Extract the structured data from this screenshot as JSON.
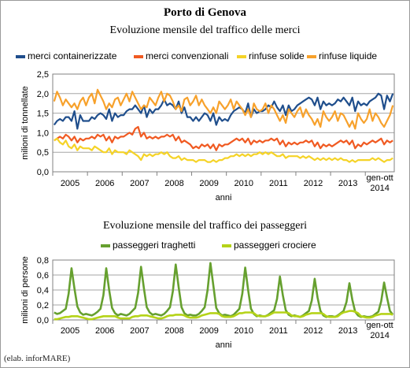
{
  "header": {
    "title": "Porto di Genova",
    "credit": "(elab. inforMARE)"
  },
  "colors": {
    "container": "#1f4e8c",
    "conventional": "#f05a22",
    "dry_bulk": "#f5d327",
    "liquid_bulk": "#f7a12b",
    "ferries": "#66a02f",
    "cruises": "#b5d318",
    "grid": "#a6a6a6"
  },
  "chart_data": [
    {
      "type": "line",
      "title": "Evoluzione mensile del traffico delle merci",
      "xlabel": "anni",
      "ylabel": "milioni di tonnellate",
      "ylim": [
        0,
        2.5
      ],
      "yticks": [
        "0,0",
        "0,5",
        "1,0",
        "1,5",
        "2,0",
        "2,5"
      ],
      "xticks": [
        "2005",
        "2006",
        "2007",
        "2008",
        "2009",
        "2010",
        "2011",
        "2012",
        "2013"
      ],
      "xtick_last": [
        "gen-ott",
        "2014"
      ],
      "grid": true,
      "legend": "top",
      "x": {
        "start": "2005-01",
        "end": "2014-10",
        "step": "month"
      },
      "series": [
        {
          "name": "merci containerizzate",
          "values": [
            1.2,
            1.3,
            1.35,
            1.3,
            1.4,
            1.4,
            1.3,
            1.55,
            1.1,
            1.45,
            1.3,
            1.3,
            1.3,
            1.4,
            1.35,
            1.45,
            1.5,
            1.45,
            1.35,
            1.6,
            1.3,
            1.5,
            1.4,
            1.45,
            1.45,
            1.55,
            1.6,
            1.6,
            1.7,
            1.6,
            1.5,
            1.7,
            1.4,
            1.6,
            1.5,
            1.6,
            1.6,
            1.7,
            1.85,
            1.7,
            1.75,
            1.7,
            1.6,
            1.8,
            1.5,
            1.65,
            1.4,
            1.4,
            1.3,
            1.4,
            1.3,
            1.4,
            1.5,
            1.45,
            1.3,
            1.5,
            1.2,
            1.4,
            1.3,
            1.35,
            1.3,
            1.45,
            1.55,
            1.6,
            1.65,
            1.6,
            1.5,
            1.75,
            1.4,
            1.6,
            1.5,
            1.55,
            1.55,
            1.6,
            1.7,
            1.65,
            1.8,
            1.65,
            1.55,
            1.7,
            1.45,
            1.7,
            1.55,
            1.6,
            1.7,
            1.75,
            1.8,
            1.85,
            1.9,
            1.85,
            1.7,
            1.9,
            1.6,
            1.8,
            1.7,
            1.75,
            1.7,
            1.75,
            1.85,
            1.8,
            1.9,
            1.8,
            1.7,
            1.9,
            1.55,
            1.8,
            1.7,
            1.75,
            1.7,
            1.8,
            1.85,
            1.9,
            2.0,
            1.95,
            1.6,
            1.95,
            1.8,
            2.0
          ]
        },
        {
          "name": "merci convenzionali",
          "values": [
            0.8,
            0.85,
            0.9,
            0.85,
            0.95,
            0.9,
            0.8,
            0.9,
            0.75,
            0.85,
            0.8,
            0.85,
            0.85,
            0.9,
            0.85,
            0.95,
            0.9,
            0.95,
            0.8,
            0.9,
            0.75,
            0.9,
            0.85,
            0.9,
            0.9,
            0.95,
            1.0,
            0.95,
            1.1,
            1.15,
            0.9,
            1.0,
            0.85,
            0.9,
            0.85,
            0.9,
            0.85,
            0.9,
            0.9,
            0.95,
            0.9,
            0.95,
            0.8,
            0.9,
            0.75,
            0.8,
            0.75,
            0.7,
            0.6,
            0.65,
            0.6,
            0.7,
            0.65,
            0.7,
            0.6,
            0.7,
            0.55,
            0.7,
            0.65,
            0.7,
            0.7,
            0.75,
            0.8,
            0.85,
            0.8,
            0.85,
            0.75,
            0.85,
            0.7,
            0.8,
            0.75,
            0.8,
            0.75,
            0.8,
            0.8,
            0.85,
            0.8,
            0.85,
            0.7,
            0.8,
            0.65,
            0.75,
            0.7,
            0.75,
            0.7,
            0.75,
            0.75,
            0.8,
            0.75,
            0.8,
            0.65,
            0.75,
            0.6,
            0.7,
            0.65,
            0.7,
            0.65,
            0.7,
            0.75,
            0.8,
            0.75,
            0.8,
            0.7,
            0.8,
            0.6,
            0.7,
            0.65,
            0.75,
            0.7,
            0.75,
            0.8,
            0.75,
            0.8,
            0.85,
            0.7,
            0.8,
            0.75,
            0.8
          ]
        },
        {
          "name": "rinfuse solide",
          "values": [
            0.8,
            0.85,
            0.75,
            0.7,
            0.8,
            0.65,
            0.6,
            0.7,
            0.55,
            0.65,
            0.6,
            0.6,
            0.6,
            0.55,
            0.65,
            0.6,
            0.55,
            0.5,
            0.5,
            0.6,
            0.45,
            0.55,
            0.5,
            0.5,
            0.5,
            0.45,
            0.55,
            0.5,
            0.45,
            0.4,
            0.3,
            0.45,
            0.4,
            0.45,
            0.4,
            0.45,
            0.45,
            0.5,
            0.45,
            0.5,
            0.4,
            0.35,
            0.35,
            0.4,
            0.3,
            0.35,
            0.3,
            0.3,
            0.3,
            0.25,
            0.3,
            0.3,
            0.3,
            0.25,
            0.25,
            0.3,
            0.25,
            0.3,
            0.3,
            0.35,
            0.35,
            0.4,
            0.4,
            0.45,
            0.4,
            0.45,
            0.4,
            0.45,
            0.4,
            0.45,
            0.45,
            0.5,
            0.45,
            0.5,
            0.45,
            0.5,
            0.45,
            0.4,
            0.4,
            0.45,
            0.35,
            0.4,
            0.4,
            0.4,
            0.4,
            0.35,
            0.4,
            0.35,
            0.4,
            0.35,
            0.3,
            0.35,
            0.3,
            0.35,
            0.3,
            0.35,
            0.3,
            0.35,
            0.3,
            0.35,
            0.3,
            0.3,
            0.25,
            0.3,
            0.25,
            0.3,
            0.3,
            0.3,
            0.3,
            0.3,
            0.35,
            0.3,
            0.35,
            0.3,
            0.25,
            0.3,
            0.3,
            0.35
          ]
        },
        {
          "name": "rinfuse liquide",
          "values": [
            1.8,
            2.05,
            1.9,
            1.7,
            1.85,
            1.75,
            1.65,
            1.75,
            1.6,
            1.8,
            1.9,
            1.7,
            1.9,
            2.0,
            1.75,
            2.1,
            1.95,
            1.8,
            1.6,
            1.75,
            1.65,
            1.85,
            1.9,
            1.7,
            1.85,
            2.0,
            1.8,
            2.05,
            1.9,
            1.75,
            1.6,
            1.7,
            1.65,
            1.9,
            1.8,
            1.7,
            1.9,
            2.05,
            1.8,
            2.0,
            1.95,
            1.8,
            1.6,
            1.7,
            1.55,
            1.85,
            1.9,
            1.7,
            1.8,
            1.95,
            1.7,
            1.85,
            1.7,
            1.6,
            1.5,
            1.65,
            1.5,
            1.8,
            1.7,
            1.6,
            1.7,
            1.85,
            1.6,
            1.8,
            1.7,
            1.6,
            1.45,
            1.6,
            1.4,
            1.75,
            1.6,
            1.55,
            1.6,
            1.75,
            1.5,
            1.7,
            1.6,
            1.45,
            1.3,
            1.45,
            1.25,
            1.6,
            1.5,
            1.4,
            1.55,
            1.65,
            1.4,
            1.6,
            1.45,
            1.35,
            1.2,
            1.35,
            1.15,
            1.55,
            1.4,
            1.3,
            1.4,
            1.55,
            1.3,
            1.5,
            1.45,
            1.3,
            1.15,
            1.3,
            1.1,
            1.5,
            1.35,
            1.25,
            1.35,
            1.6,
            1.3,
            1.5,
            1.4,
            1.25,
            1.15,
            1.3,
            1.45,
            1.7
          ]
        }
      ]
    },
    {
      "type": "line",
      "title": "Evoluzione mensile del traffico dei passeggeri",
      "xlabel": "anni",
      "ylabel": "milioni di persone",
      "ylim": [
        0,
        0.8
      ],
      "yticks": [
        "0,0",
        "0,2",
        "0,4",
        "0,6",
        "0,8"
      ],
      "xticks": [
        "2005",
        "2006",
        "2007",
        "2008",
        "2009",
        "2010",
        "2011",
        "2012",
        "2013"
      ],
      "xtick_last": [
        "gen-ott",
        "2014"
      ],
      "grid": true,
      "legend": "top",
      "x": {
        "start": "2005-01",
        "end": "2014-10",
        "step": "month"
      },
      "series": [
        {
          "name": "passeggeri traghetti",
          "values": [
            0.1,
            0.08,
            0.09,
            0.12,
            0.15,
            0.35,
            0.69,
            0.42,
            0.18,
            0.1,
            0.07,
            0.08,
            0.07,
            0.06,
            0.08,
            0.11,
            0.15,
            0.33,
            0.69,
            0.4,
            0.16,
            0.09,
            0.06,
            0.08,
            0.07,
            0.06,
            0.08,
            0.12,
            0.16,
            0.36,
            0.71,
            0.42,
            0.17,
            0.1,
            0.07,
            0.08,
            0.07,
            0.06,
            0.08,
            0.12,
            0.17,
            0.38,
            0.74,
            0.44,
            0.17,
            0.09,
            0.06,
            0.07,
            0.06,
            0.06,
            0.08,
            0.12,
            0.17,
            0.4,
            0.76,
            0.46,
            0.16,
            0.09,
            0.06,
            0.07,
            0.06,
            0.05,
            0.07,
            0.11,
            0.15,
            0.35,
            0.7,
            0.4,
            0.15,
            0.08,
            0.05,
            0.06,
            0.05,
            0.05,
            0.07,
            0.1,
            0.13,
            0.28,
            0.58,
            0.33,
            0.13,
            0.07,
            0.05,
            0.06,
            0.05,
            0.04,
            0.06,
            0.09,
            0.12,
            0.26,
            0.55,
            0.3,
            0.12,
            0.06,
            0.04,
            0.05,
            0.05,
            0.04,
            0.06,
            0.09,
            0.12,
            0.24,
            0.49,
            0.27,
            0.11,
            0.06,
            0.04,
            0.05,
            0.04,
            0.04,
            0.05,
            0.08,
            0.11,
            0.25,
            0.5,
            0.3,
            0.12,
            0.07
          ]
        },
        {
          "name": "passeggeri crociere",
          "values": [
            0.01,
            0.01,
            0.02,
            0.03,
            0.04,
            0.04,
            0.05,
            0.05,
            0.05,
            0.04,
            0.03,
            0.02,
            0.01,
            0.01,
            0.02,
            0.03,
            0.04,
            0.05,
            0.05,
            0.05,
            0.05,
            0.05,
            0.03,
            0.02,
            0.02,
            0.02,
            0.02,
            0.04,
            0.05,
            0.05,
            0.06,
            0.06,
            0.06,
            0.05,
            0.04,
            0.03,
            0.02,
            0.02,
            0.03,
            0.05,
            0.06,
            0.06,
            0.07,
            0.07,
            0.07,
            0.06,
            0.04,
            0.03,
            0.03,
            0.03,
            0.04,
            0.06,
            0.07,
            0.08,
            0.09,
            0.09,
            0.09,
            0.08,
            0.05,
            0.04,
            0.04,
            0.04,
            0.05,
            0.07,
            0.09,
            0.09,
            0.1,
            0.1,
            0.1,
            0.09,
            0.06,
            0.05,
            0.05,
            0.05,
            0.06,
            0.08,
            0.1,
            0.1,
            0.1,
            0.1,
            0.1,
            0.09,
            0.06,
            0.05,
            0.05,
            0.04,
            0.05,
            0.07,
            0.08,
            0.09,
            0.09,
            0.09,
            0.09,
            0.08,
            0.05,
            0.04,
            0.04,
            0.04,
            0.05,
            0.08,
            0.1,
            0.11,
            0.12,
            0.12,
            0.11,
            0.09,
            0.05,
            0.04,
            0.03,
            0.03,
            0.04,
            0.06,
            0.07,
            0.08,
            0.08,
            0.08,
            0.08,
            0.07
          ]
        }
      ]
    }
  ]
}
